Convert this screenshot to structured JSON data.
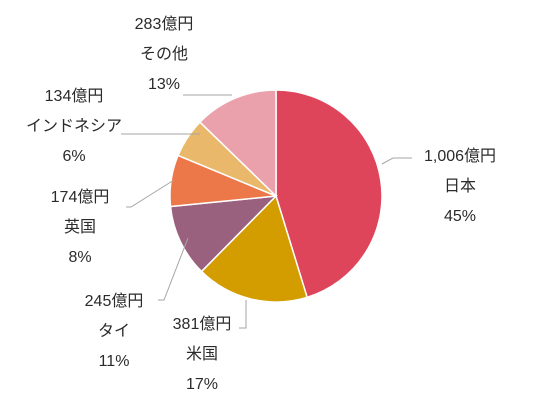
{
  "chart_data": {
    "type": "pie",
    "title": "",
    "start": "12 o'clock",
    "direction": "clockwise",
    "slices": [
      {
        "name": "日本",
        "amount": "1,006億円",
        "percent": "45%",
        "value": 1006,
        "color": "#de445a"
      },
      {
        "name": "米国",
        "amount": "381億円",
        "percent": "17%",
        "value": 381,
        "color": "#d39d00"
      },
      {
        "name": "タイ",
        "amount": "245億円",
        "percent": "11%",
        "value": 245,
        "color": "#9a617f"
      },
      {
        "name": "英国",
        "amount": "174億円",
        "percent": "8%",
        "value": 174,
        "color": "#ec784a"
      },
      {
        "name": "インドネシア",
        "amount": "134億円",
        "percent": "6%",
        "value": 134,
        "color": "#e9b86b"
      },
      {
        "name": "その他",
        "amount": "283億円",
        "percent": "13%",
        "value": 283,
        "color": "#eba1ac"
      }
    ],
    "label_color": "#2b2b2b",
    "leader_line_color": "#a6a6a6"
  }
}
